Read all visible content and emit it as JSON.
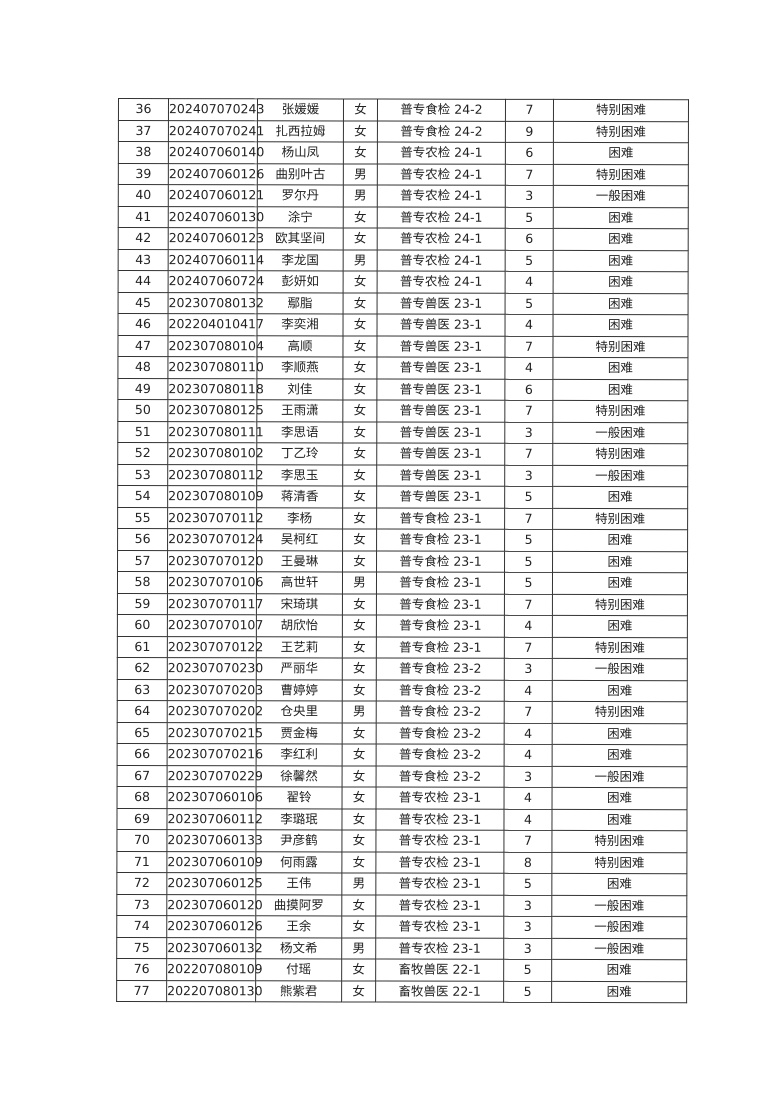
{
  "table": {
    "rows": [
      [
        "36",
        "202407070243",
        "张媛媛",
        "女",
        "普专食检 24-2",
        "7",
        "特别困难"
      ],
      [
        "37",
        "202407070241",
        "扎西拉姆",
        "女",
        "普专食检 24-2",
        "9",
        "特别困难"
      ],
      [
        "38",
        "202407060140",
        "杨山凤",
        "女",
        "普专农检 24-1",
        "6",
        "困难"
      ],
      [
        "39",
        "202407060126",
        "曲别叶古",
        "男",
        "普专农检 24-1",
        "7",
        "特别困难"
      ],
      [
        "40",
        "202407060121",
        "罗尔丹",
        "男",
        "普专农检 24-1",
        "3",
        "一般困难"
      ],
      [
        "41",
        "202407060130",
        "涂宁",
        "女",
        "普专农检 24-1",
        "5",
        "困难"
      ],
      [
        "42",
        "202407060123",
        "欧其坚间",
        "女",
        "普专农检 24-1",
        "6",
        "困难"
      ],
      [
        "43",
        "202407060114",
        "李龙国",
        "男",
        "普专农检 24-1",
        "5",
        "困难"
      ],
      [
        "44",
        "202407060724",
        "彭妍如",
        "女",
        "普专农检 24-1",
        "4",
        "困难"
      ],
      [
        "45",
        "202307080132",
        "鄢脂",
        "女",
        "普专兽医 23-1",
        "5",
        "困难"
      ],
      [
        "46",
        "202204010417",
        "李奕湘",
        "女",
        "普专兽医 23-1",
        "4",
        "困难"
      ],
      [
        "47",
        "202307080104",
        "高顺",
        "女",
        "普专兽医 23-1",
        "7",
        "特别困难"
      ],
      [
        "48",
        "202307080110",
        "李顺燕",
        "女",
        "普专兽医 23-1",
        "4",
        "困难"
      ],
      [
        "49",
        "202307080118",
        "刘佳",
        "女",
        "普专兽医 23-1",
        "6",
        "困难"
      ],
      [
        "50",
        "202307080125",
        "王雨潇",
        "女",
        "普专兽医 23-1",
        "7",
        "特别困难"
      ],
      [
        "51",
        "202307080111",
        "李思语",
        "女",
        "普专兽医 23-1",
        "3",
        "一般困难"
      ],
      [
        "52",
        "202307080102",
        "丁乙玲",
        "女",
        "普专兽医 23-1",
        "7",
        "特别困难"
      ],
      [
        "53",
        "202307080112",
        "李思玉",
        "女",
        "普专兽医 23-1",
        "3",
        "一般困难"
      ],
      [
        "54",
        "202307080109",
        "蒋清香",
        "女",
        "普专兽医 23-1",
        "5",
        "困难"
      ],
      [
        "55",
        "202307070112",
        "李杨",
        "女",
        "普专食检 23-1",
        "7",
        "特别困难"
      ],
      [
        "56",
        "202307070124",
        "吴柯红",
        "女",
        "普专食检 23-1",
        "5",
        "困难"
      ],
      [
        "57",
        "202307070120",
        "王曼琳",
        "女",
        "普专食检 23-1",
        "5",
        "困难"
      ],
      [
        "58",
        "202307070106",
        "高世轩",
        "男",
        "普专食检 23-1",
        "5",
        "困难"
      ],
      [
        "59",
        "202307070117",
        "宋琦琪",
        "女",
        "普专食检 23-1",
        "7",
        "特别困难"
      ],
      [
        "60",
        "202307070107",
        "胡欣怡",
        "女",
        "普专食检 23-1",
        "4",
        "困难"
      ],
      [
        "61",
        "202307070122",
        "王艺莉",
        "女",
        "普专食检 23-1",
        "7",
        "特别困难"
      ],
      [
        "62",
        "202307070230",
        "严丽华",
        "女",
        "普专食检 23-2",
        "3",
        "一般困难"
      ],
      [
        "63",
        "202307070203",
        "曹婷婷",
        "女",
        "普专食检 23-2",
        "4",
        "困难"
      ],
      [
        "64",
        "202307070202",
        "仓央里",
        "男",
        "普专食检 23-2",
        "7",
        "特别困难"
      ],
      [
        "65",
        "202307070215",
        "贾金梅",
        "女",
        "普专食检 23-2",
        "4",
        "困难"
      ],
      [
        "66",
        "202307070216",
        "李红利",
        "女",
        "普专食检 23-2",
        "4",
        "困难"
      ],
      [
        "67",
        "202307070229",
        "徐馨然",
        "女",
        "普专食检 23-2",
        "3",
        "一般困难"
      ],
      [
        "68",
        "202307060106",
        "翟铃",
        "女",
        "普专农检 23-1",
        "4",
        "困难"
      ],
      [
        "69",
        "202307060112",
        "李璐珉",
        "女",
        "普专农检 23-1",
        "4",
        "困难"
      ],
      [
        "70",
        "202307060133",
        "尹彦鹤",
        "女",
        "普专农检 23-1",
        "7",
        "特别困难"
      ],
      [
        "71",
        "202307060109",
        "何雨露",
        "女",
        "普专农检 23-1",
        "8",
        "特别困难"
      ],
      [
        "72",
        "202307060125",
        "王伟",
        "男",
        "普专农检 23-1",
        "5",
        "困难"
      ],
      [
        "73",
        "202307060120",
        "曲摸阿罗",
        "女",
        "普专农检 23-1",
        "3",
        "一般困难"
      ],
      [
        "74",
        "202307060126",
        "王余",
        "女",
        "普专农检 23-1",
        "3",
        "一般困难"
      ],
      [
        "75",
        "202307060132",
        "杨文希",
        "男",
        "普专农检 23-1",
        "3",
        "一般困难"
      ],
      [
        "76",
        "202207080109",
        "付瑶",
        "女",
        "畜牧兽医 22-1",
        "5",
        "困难"
      ],
      [
        "77",
        "202207080130",
        "熊紫君",
        "女",
        "畜牧兽医 22-1",
        "5",
        "困难"
      ]
    ]
  }
}
